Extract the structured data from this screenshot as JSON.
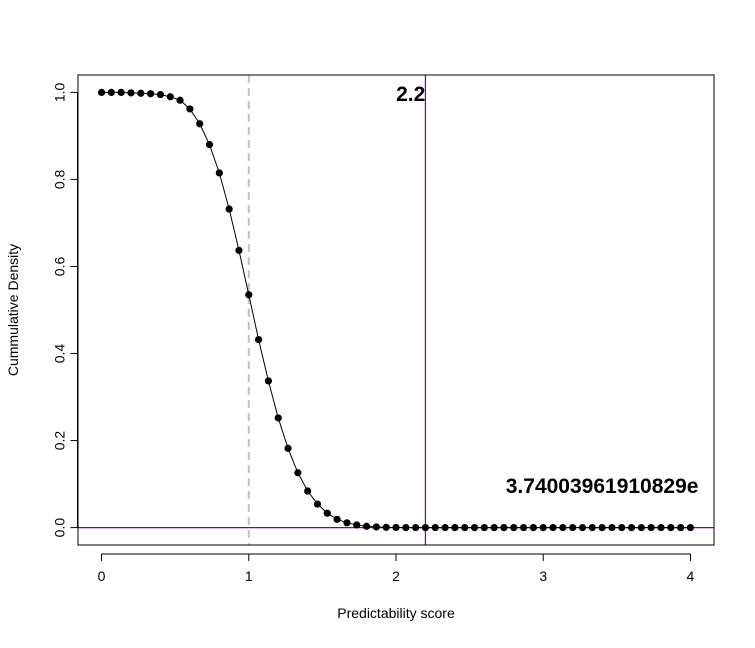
{
  "chart_data": {
    "type": "line",
    "title": "",
    "xlabel": "Predictability score",
    "ylabel": "Cummulative Density",
    "xlim": [
      -0.16,
      4.16
    ],
    "ylim": [
      -0.04,
      1.04
    ],
    "x_ticks": [
      0,
      1,
      2,
      3,
      4
    ],
    "x_tick_labels": [
      "0",
      "1",
      "2",
      "3",
      "4"
    ],
    "y_ticks": [
      0.0,
      0.2,
      0.4,
      0.6,
      0.8,
      1.0
    ],
    "y_tick_labels": [
      "0.0",
      "0.2",
      "0.4",
      "0.6",
      "0.8",
      "1.0"
    ],
    "grid": false,
    "series": [
      {
        "style": "line-with-points",
        "color": "#000000",
        "x": [
          0.0,
          0.0667,
          0.1333,
          0.2,
          0.2667,
          0.3333,
          0.4,
          0.4667,
          0.5333,
          0.6,
          0.6667,
          0.7333,
          0.8,
          0.8667,
          0.9333,
          1.0,
          1.0667,
          1.1333,
          1.2,
          1.2667,
          1.3333,
          1.4,
          1.4667,
          1.5333,
          1.6,
          1.6667,
          1.7333,
          1.8,
          1.8667,
          1.9333,
          2.0,
          2.0667,
          2.1333,
          2.2,
          2.2667,
          2.3333,
          2.4,
          2.4667,
          2.5333,
          2.6,
          2.6667,
          2.7333,
          2.8,
          2.8667,
          2.9333,
          3.0,
          3.0667,
          3.1333,
          3.2,
          3.2667,
          3.3333,
          3.4,
          3.4667,
          3.5333,
          3.6,
          3.6667,
          3.7333,
          3.8,
          3.8667,
          3.9333,
          4.0
        ],
        "y": [
          1.0,
          1.0,
          1.0,
          0.999,
          0.998,
          0.997,
          0.995,
          0.99,
          0.982,
          0.962,
          0.928,
          0.88,
          0.815,
          0.732,
          0.637,
          0.535,
          0.432,
          0.337,
          0.252,
          0.182,
          0.126,
          0.084,
          0.054,
          0.033,
          0.019,
          0.011,
          0.006,
          0.003,
          0.0015,
          0.0007,
          0.0003,
          0.0001,
          0.0,
          0.0,
          0.0,
          0.0,
          0.0,
          0.0,
          0.0,
          0.0,
          0.0,
          0.0,
          0.0,
          0.0,
          0.0,
          0.0,
          0.0,
          0.0,
          0.0,
          0.0,
          0.0,
          0.0,
          0.0,
          0.0,
          0.0,
          0.0,
          0.0,
          0.0,
          0.0,
          0.0,
          0.0
        ]
      }
    ],
    "reference_lines": [
      {
        "orientation": "vertical",
        "value": 1,
        "color": "#c0c0c0",
        "dashed": true
      },
      {
        "orientation": "vertical",
        "value": 2.2,
        "color": "#800080",
        "dashed": false
      },
      {
        "orientation": "horizontal",
        "value": 0,
        "color": "#800080",
        "dashed": false
      }
    ],
    "annotations": [
      {
        "text": "2.2",
        "x": 2.1,
        "y": 0.995
      },
      {
        "text": "3.74003961910829e",
        "x": 3.4,
        "y": 0.095
      }
    ]
  }
}
